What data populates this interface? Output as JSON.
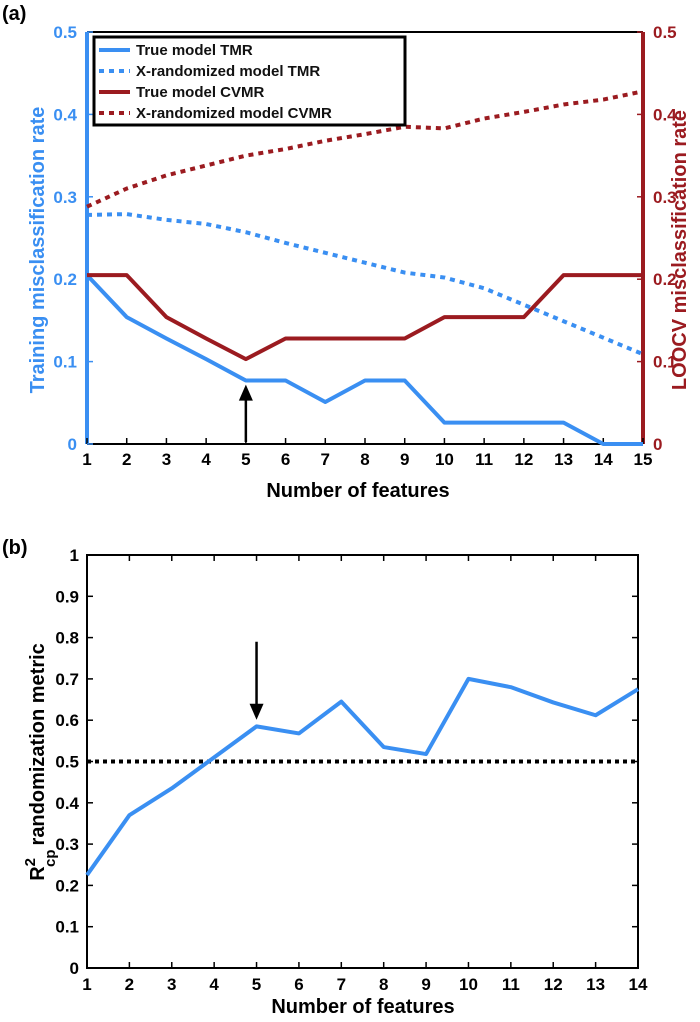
{
  "chart_data": [
    {
      "panel_label": "(a)",
      "type": "line",
      "xlabel": "Number of features",
      "ylabel_left": "Training misclassification rate",
      "ylabel_right": "LOOCV misclassification rate",
      "xlim": [
        1,
        15
      ],
      "ylim_left": [
        0,
        0.5
      ],
      "ylim_right": [
        0,
        0.5
      ],
      "x_ticks": [
        1,
        2,
        3,
        4,
        5,
        6,
        7,
        8,
        9,
        10,
        11,
        12,
        13,
        14,
        15
      ],
      "y_ticks_left": [
        0,
        0.1,
        0.2,
        0.3,
        0.4,
        0.5
      ],
      "y_ticks_right": [
        0,
        0.1,
        0.2,
        0.3,
        0.4,
        0.5
      ],
      "legend_position": "top-left",
      "arrow_at_x": 5,
      "colors": {
        "blue": "#3a8ff2",
        "darkred": "#9b1b20"
      },
      "series": [
        {
          "name": "True model TMR",
          "axis": "left",
          "style": "solid",
          "color": "#3a8ff2",
          "x": [
            1,
            2,
            3,
            4,
            5,
            6,
            7,
            8,
            9,
            10,
            11,
            12,
            13,
            14,
            15
          ],
          "values": [
            0.205,
            0.154,
            0.128,
            0.103,
            0.077,
            0.077,
            0.051,
            0.077,
            0.077,
            0.026,
            0.026,
            0.026,
            0.026,
            0,
            0
          ]
        },
        {
          "name": "X-randomized model TMR",
          "axis": "left",
          "style": "dotted",
          "color": "#3a8ff2",
          "x": [
            1,
            2,
            3,
            4,
            5,
            6,
            7,
            8,
            9,
            10,
            11,
            12,
            13,
            14,
            15
          ],
          "values": [
            0.278,
            0.279,
            0.272,
            0.267,
            0.257,
            0.244,
            0.232,
            0.22,
            0.208,
            0.202,
            0.189,
            0.169,
            0.149,
            0.129,
            0.109
          ]
        },
        {
          "name": "True model CVMR",
          "axis": "right",
          "style": "solid",
          "color": "#9b1b20",
          "x": [
            1,
            2,
            3,
            4,
            5,
            6,
            7,
            8,
            9,
            10,
            11,
            12,
            13,
            14,
            15
          ],
          "values": [
            0.205,
            0.205,
            0.154,
            0.128,
            0.103,
            0.128,
            0.128,
            0.128,
            0.128,
            0.154,
            0.154,
            0.154,
            0.205,
            0.205,
            0.205
          ]
        },
        {
          "name": "X-randomized model CVMR",
          "axis": "right",
          "style": "dotted",
          "color": "#9b1b20",
          "x": [
            1,
            2,
            3,
            4,
            5,
            6,
            7,
            8,
            9,
            10,
            11,
            12,
            13,
            14,
            15
          ],
          "values": [
            0.288,
            0.31,
            0.326,
            0.338,
            0.35,
            0.358,
            0.368,
            0.376,
            0.385,
            0.383,
            0.395,
            0.403,
            0.412,
            0.418,
            0.428
          ]
        }
      ]
    },
    {
      "panel_label": "(b)",
      "type": "line",
      "xlabel": "Number of features",
      "ylabel_main": "R",
      "ylabel_sup": "2",
      "ylabel_sub": "cp",
      "ylabel_rest": "randomization metric",
      "xlim": [
        1,
        14
      ],
      "ylim": [
        0,
        1
      ],
      "x_ticks": [
        1,
        2,
        3,
        4,
        5,
        6,
        7,
        8,
        9,
        10,
        11,
        12,
        13,
        14
      ],
      "y_ticks": [
        0,
        0.1,
        0.2,
        0.3,
        0.4,
        0.5,
        0.6,
        0.7,
        0.8,
        0.9,
        1
      ],
      "threshold": 0.5,
      "arrow_at_x": 5,
      "colors": {
        "line": "#3a8ff2",
        "threshold": "#000000"
      },
      "series": [
        {
          "x": [
            1,
            2,
            3,
            4,
            5,
            6,
            7,
            8,
            9,
            10,
            11,
            12,
            13,
            14
          ],
          "values": [
            0.225,
            0.37,
            0.435,
            0.51,
            0.585,
            0.568,
            0.645,
            0.535,
            0.518,
            0.7,
            0.68,
            0.643,
            0.612,
            0.675
          ]
        }
      ]
    }
  ]
}
